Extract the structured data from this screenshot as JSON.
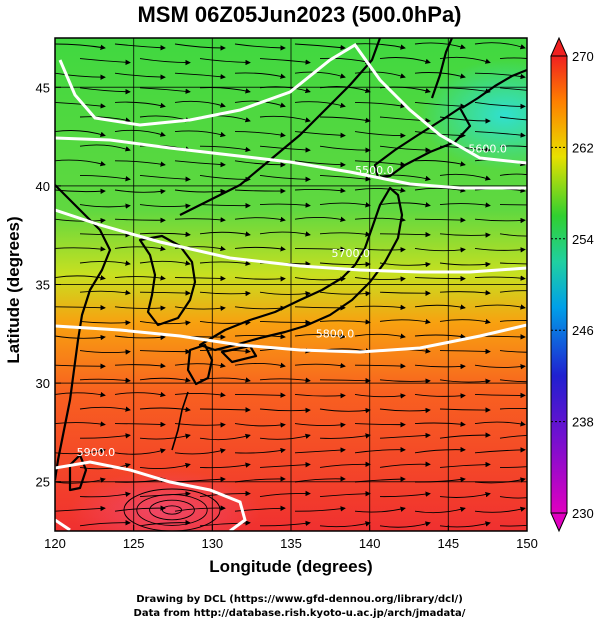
{
  "title": "MSM 06Z05Jun2023 (500.0hPa)",
  "x_axis": {
    "label": "Longitude (degrees)",
    "range": [
      120,
      150
    ],
    "ticks": [
      "120",
      "125",
      "130",
      "135",
      "140",
      "145",
      "150"
    ]
  },
  "y_axis": {
    "label": "Latitude  (degrees)",
    "range": [
      22.5,
      47.5
    ],
    "ticks": [
      "25",
      "30",
      "35",
      "40",
      "45"
    ]
  },
  "colorbar": {
    "range": [
      230,
      270
    ],
    "ticks": [
      "230",
      "238",
      "246",
      "254",
      "262",
      "270"
    ],
    "colors": [
      "#e000c0",
      "#2020d0",
      "#00b0e0",
      "#20c060",
      "#30d030",
      "#f0e000",
      "#ff8000",
      "#ff2020"
    ]
  },
  "contours": [
    {
      "label": "5500.0",
      "lon": 140.3,
      "lat": 40.6
    },
    {
      "label": "5600.0",
      "lon": 147.5,
      "lat": 41.7
    },
    {
      "label": "5700.0",
      "lon": 138.8,
      "lat": 36.4
    },
    {
      "label": "5800.0",
      "lon": 137.8,
      "lat": 32.3
    },
    {
      "label": "5900.0",
      "lon": 122.6,
      "lat": 26.3
    }
  ],
  "credits": {
    "line1": "Drawing by DCL (https://www.gfd-dennou.org/library/dcl/)",
    "line2": "Data from http://database.rish.kyoto-u.ac.jp/arch/jmadata/"
  }
}
